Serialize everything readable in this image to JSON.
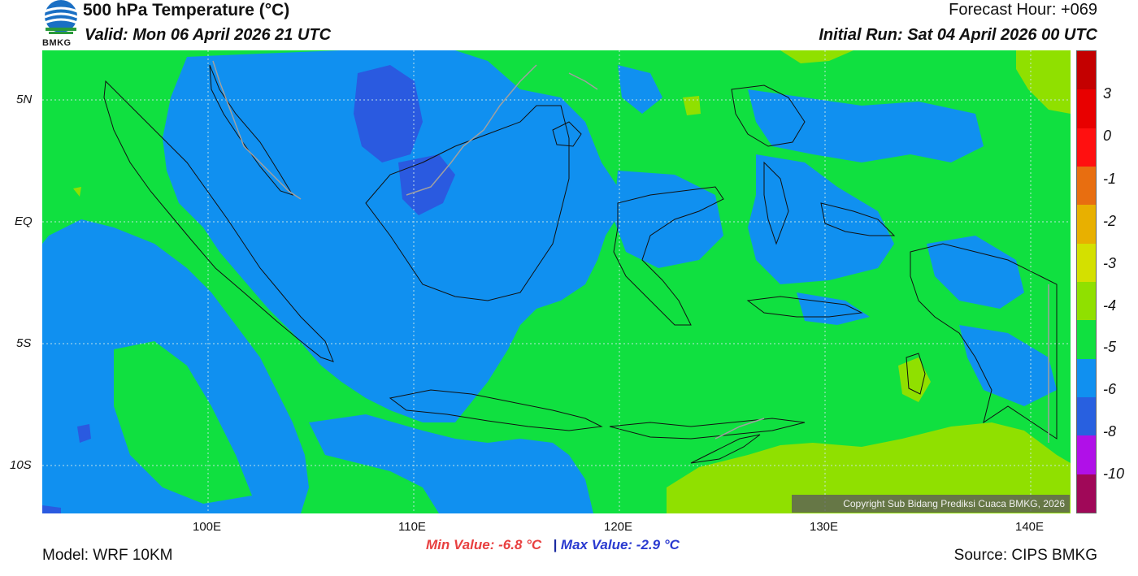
{
  "header": {
    "logo_text": "BMKG",
    "title": "500 hPa Temperature (°C)",
    "valid": "Valid: Mon 06 April 2026 21 UTC",
    "forecast_hour": "Forecast Hour: +069",
    "initial_run": "Initial Run: Sat 04 April 2026 00 UTC"
  },
  "map": {
    "lat_labels": [
      "5N",
      "EQ",
      "5S",
      "10S"
    ],
    "lon_labels": [
      "100E",
      "110E",
      "120E",
      "130E",
      "140E"
    ],
    "copyright": "Copyright Sub Bidang Prediksi Cuaca BMKG, 2026"
  },
  "legend": {
    "labels": [
      "3",
      "0",
      "-1",
      "-2",
      "-3",
      "-4",
      "-5",
      "-6",
      "-8",
      "-10"
    ],
    "colors_top_to_bottom": [
      "#c40000",
      "#e80000",
      "#ff1010",
      "#e86e10",
      "#e8b000",
      "#d4e000",
      "#90e000",
      "#10e040",
      "#1090f0",
      "#2860e0",
      "#b010e8",
      "#a00858"
    ]
  },
  "colors": {
    "green": "#10e040",
    "blue": "#1090f0",
    "dark_blue": "#2a5ae0",
    "light_green": "#90e000"
  },
  "stats": {
    "min_value": "Min Value: -6.8 °C",
    "separator": "|",
    "max_value": "Max Value: -2.9 °C"
  },
  "footer": {
    "model": "Model: WRF 10KM",
    "source": "Source: CIPS BMKG"
  }
}
